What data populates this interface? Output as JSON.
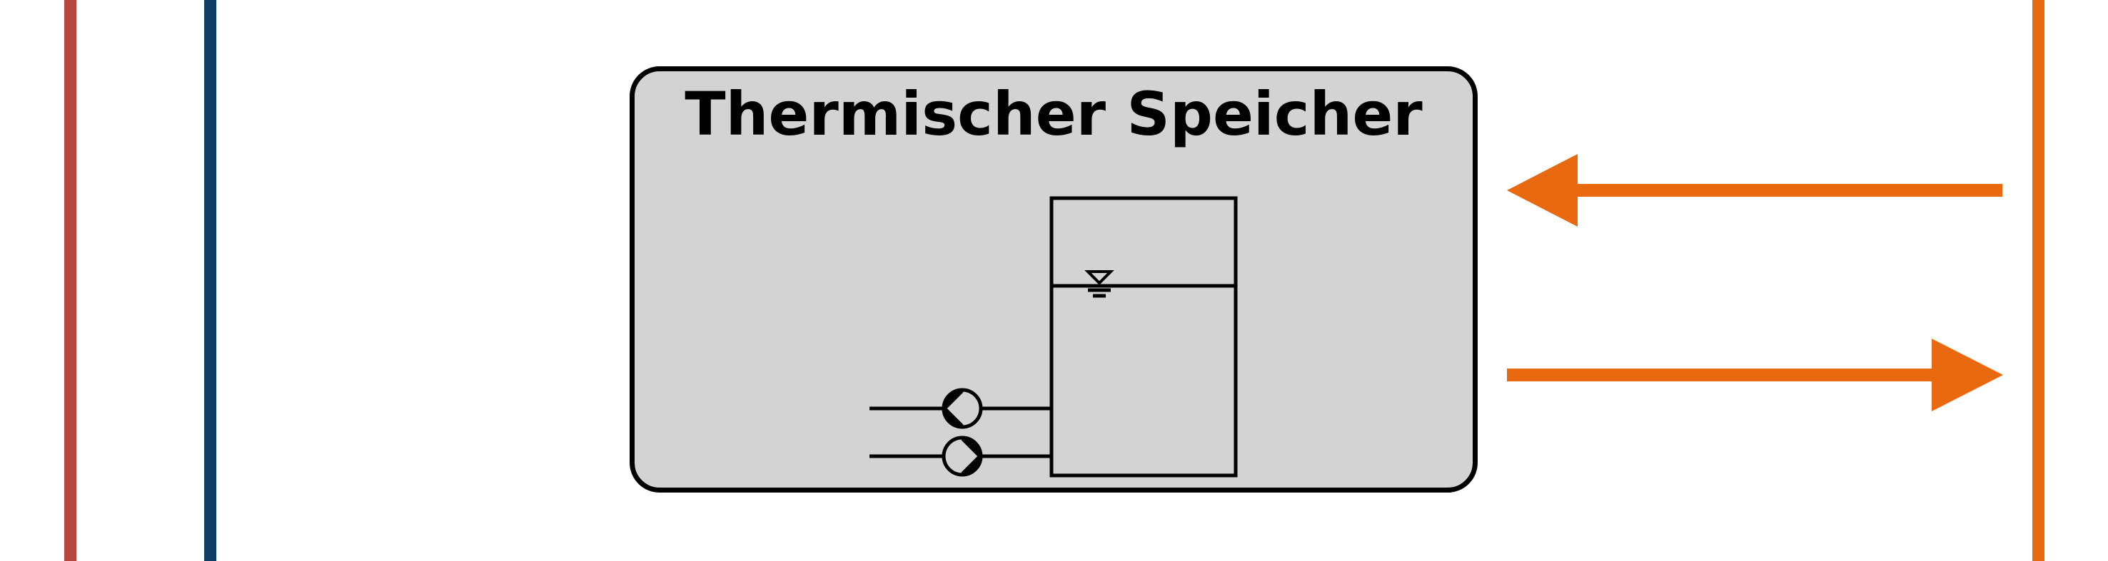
{
  "storage": {
    "title": "Thermischer Speicher"
  },
  "colors": {
    "line_left_red": "#b5473e",
    "line_left_blue": "#0d3d62",
    "line_right_orange": "#e8690f",
    "arrow_orange": "#e8690f",
    "box_fill": "#d3d3d3",
    "outline": "#000000"
  },
  "icons": {
    "tank": "storage-tank-icon",
    "water_level": "water-level-icon",
    "pump_upper": "pump-icon",
    "pump_lower": "pump-icon",
    "arrow_in": "arrow-left-icon",
    "arrow_out": "arrow-right-icon"
  }
}
